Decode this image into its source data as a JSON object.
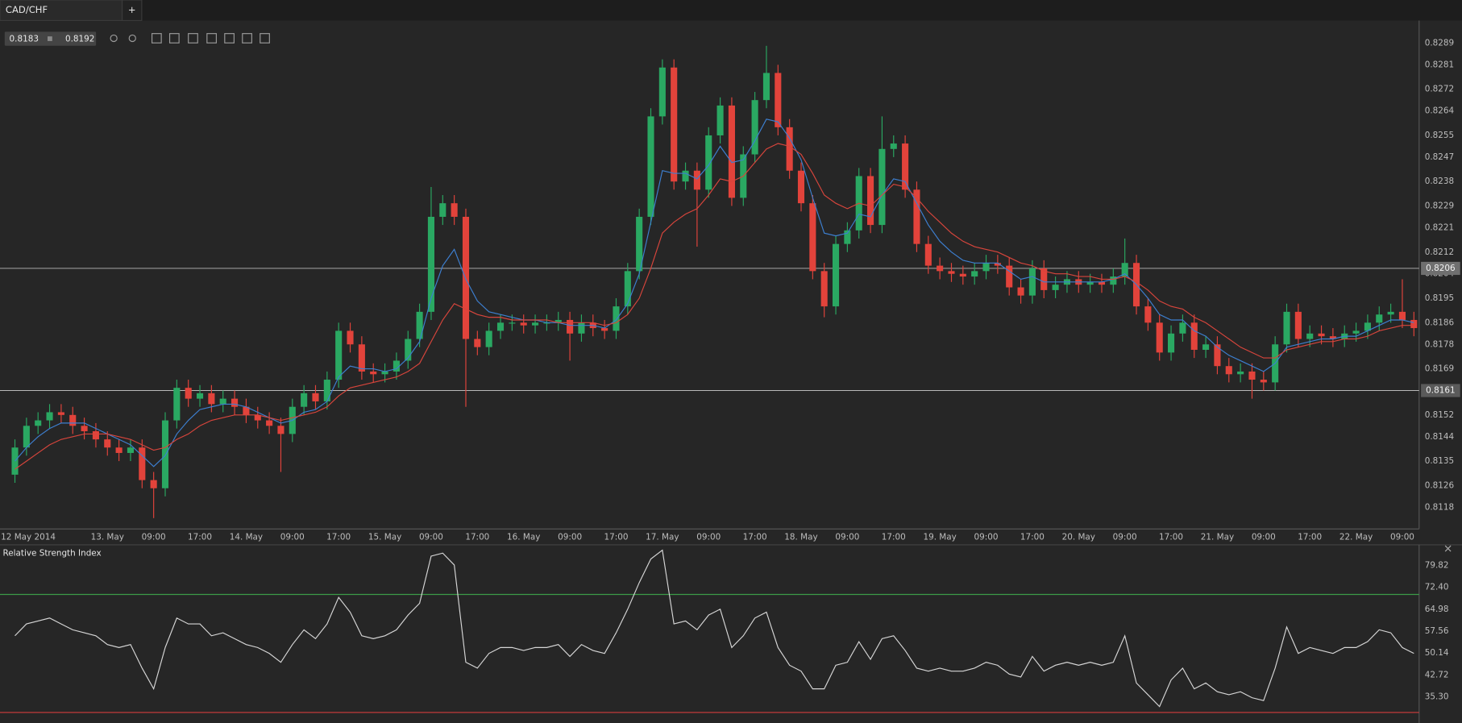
{
  "tabs": [
    "CAD/CHF",
    "+"
  ],
  "toolbar": {
    "bid": "0.8183",
    "ask": "0.8192"
  },
  "chart_data": [
    {
      "type": "candlestick",
      "up_color": "#2aa862",
      "down_color": "#e2433b",
      "ylim": [
        0.811,
        0.8298
      ],
      "yticks": [
        0.8289,
        0.8281,
        0.8272,
        0.8264,
        0.8255,
        0.8247,
        0.8238,
        0.8229,
        0.8221,
        0.8212,
        0.8204,
        0.8195,
        0.8186,
        0.8178,
        0.8169,
        0.8152,
        0.8144,
        0.8135,
        0.8126,
        0.8118
      ],
      "price_lines": [
        0.8206,
        0.8161
      ],
      "categories": [
        "12 May 2014",
        null,
        null,
        null,
        null,
        null,
        null,
        null,
        "13. May",
        null,
        null,
        null,
        "09:00",
        null,
        null,
        null,
        "17:00",
        null,
        null,
        null,
        "14. May",
        null,
        null,
        null,
        "09:00",
        null,
        null,
        null,
        "17:00",
        null,
        null,
        null,
        "15. May",
        null,
        null,
        null,
        "09:00",
        null,
        null,
        null,
        "17:00",
        null,
        null,
        null,
        "16. May",
        null,
        null,
        null,
        "09:00",
        null,
        null,
        null,
        "17:00",
        null,
        null,
        null,
        "17. May",
        null,
        null,
        null,
        "09:00",
        null,
        null,
        null,
        "17:00",
        null,
        null,
        null,
        "18. May",
        null,
        null,
        null,
        "09:00",
        null,
        null,
        null,
        "17:00",
        null,
        null,
        null,
        "19. May",
        null,
        null,
        null,
        "09:00",
        null,
        null,
        null,
        "17:00",
        null,
        null,
        null,
        "20. May",
        null,
        null,
        null,
        "09:00",
        null,
        null,
        null,
        "17:00",
        null,
        null,
        null,
        "21. May",
        null,
        null,
        null,
        "09:00",
        null,
        null,
        null,
        "17:00",
        null,
        null,
        null,
        "22. May",
        null,
        null,
        null,
        "09:00",
        null
      ],
      "open": [
        0.813,
        0.814,
        0.8148,
        0.815,
        0.8153,
        0.8152,
        0.8148,
        0.8146,
        0.8143,
        0.814,
        0.8138,
        0.814,
        0.8128,
        0.8125,
        0.815,
        0.8162,
        0.8158,
        0.816,
        0.8156,
        0.8158,
        0.8155,
        0.8152,
        0.815,
        0.8148,
        0.8145,
        0.8155,
        0.816,
        0.8157,
        0.8165,
        0.8183,
        0.8178,
        0.8168,
        0.8167,
        0.8168,
        0.8172,
        0.818,
        0.819,
        0.8225,
        0.823,
        0.8225,
        0.818,
        0.8177,
        0.8183,
        0.8186,
        0.8186,
        0.8185,
        0.8186,
        0.8186,
        0.8187,
        0.8182,
        0.8186,
        0.8184,
        0.8183,
        0.8192,
        0.8205,
        0.8225,
        0.8262,
        0.828,
        0.8238,
        0.8242,
        0.8235,
        0.8255,
        0.8266,
        0.8232,
        0.8248,
        0.8268,
        0.8278,
        0.8258,
        0.8242,
        0.823,
        0.8205,
        0.8192,
        0.8215,
        0.822,
        0.824,
        0.8222,
        0.825,
        0.8252,
        0.8235,
        0.8215,
        0.8207,
        0.8205,
        0.8204,
        0.8203,
        0.8205,
        0.8208,
        0.8207,
        0.8199,
        0.8196,
        0.8206,
        0.8198,
        0.82,
        0.8202,
        0.82,
        0.8201,
        0.82,
        0.8203,
        0.8208,
        0.8192,
        0.8186,
        0.8175,
        0.8182,
        0.8186,
        0.8176,
        0.8178,
        0.817,
        0.8167,
        0.8168,
        0.8165,
        0.8164,
        0.8178,
        0.819,
        0.818,
        0.8182,
        0.8181,
        0.818,
        0.8182,
        0.8183,
        0.8186,
        0.8189,
        0.819,
        0.8187
      ],
      "high": [
        0.8143,
        0.8151,
        0.8153,
        0.8156,
        0.8156,
        0.8155,
        0.8151,
        0.8149,
        0.8146,
        0.8143,
        0.8143,
        0.8143,
        0.8131,
        0.8153,
        0.8165,
        0.8165,
        0.8163,
        0.8163,
        0.8161,
        0.8161,
        0.8158,
        0.8155,
        0.8153,
        0.8151,
        0.8158,
        0.8163,
        0.8163,
        0.8168,
        0.8186,
        0.8186,
        0.8181,
        0.8171,
        0.8171,
        0.8175,
        0.8183,
        0.8193,
        0.8236,
        0.8233,
        0.8233,
        0.8228,
        0.8183,
        0.8186,
        0.8189,
        0.8189,
        0.8189,
        0.8189,
        0.8189,
        0.819,
        0.819,
        0.8189,
        0.8189,
        0.8187,
        0.8195,
        0.8208,
        0.8228,
        0.8265,
        0.8283,
        0.8283,
        0.8245,
        0.8245,
        0.8258,
        0.8269,
        0.8269,
        0.8251,
        0.8271,
        0.8288,
        0.8281,
        0.8261,
        0.8245,
        0.8233,
        0.8208,
        0.8218,
        0.8223,
        0.8243,
        0.8243,
        0.8262,
        0.8255,
        0.8255,
        0.8238,
        0.8218,
        0.821,
        0.8208,
        0.8207,
        0.8208,
        0.8211,
        0.8211,
        0.821,
        0.8202,
        0.8209,
        0.8209,
        0.8203,
        0.8205,
        0.8205,
        0.8204,
        0.8204,
        0.8206,
        0.8217,
        0.8211,
        0.8195,
        0.8189,
        0.8185,
        0.8189,
        0.8189,
        0.8181,
        0.8181,
        0.8173,
        0.8171,
        0.8171,
        0.8168,
        0.8181,
        0.8193,
        0.8193,
        0.8185,
        0.8185,
        0.8184,
        0.8185,
        0.8186,
        0.8189,
        0.8192,
        0.8193,
        0.8202,
        0.819
      ],
      "low": [
        0.8127,
        0.8137,
        0.8145,
        0.8147,
        0.8149,
        0.8145,
        0.8143,
        0.814,
        0.8137,
        0.8135,
        0.8135,
        0.8125,
        0.8114,
        0.8122,
        0.8147,
        0.8155,
        0.8155,
        0.8153,
        0.8153,
        0.8152,
        0.8149,
        0.8147,
        0.8145,
        0.8131,
        0.8142,
        0.8152,
        0.8154,
        0.8154,
        0.8162,
        0.8175,
        0.8165,
        0.8164,
        0.8164,
        0.8165,
        0.8169,
        0.8177,
        0.8187,
        0.8222,
        0.8222,
        0.8155,
        0.8174,
        0.8174,
        0.818,
        0.8183,
        0.8182,
        0.8182,
        0.8183,
        0.8183,
        0.8172,
        0.8179,
        0.8181,
        0.818,
        0.818,
        0.8189,
        0.8202,
        0.8222,
        0.8259,
        0.8235,
        0.8235,
        0.8214,
        0.8232,
        0.8252,
        0.8229,
        0.8229,
        0.8245,
        0.8265,
        0.8255,
        0.8239,
        0.8227,
        0.8202,
        0.8188,
        0.8189,
        0.8212,
        0.8217,
        0.8219,
        0.8219,
        0.8247,
        0.8232,
        0.8212,
        0.8204,
        0.8202,
        0.8201,
        0.82,
        0.82,
        0.8202,
        0.8204,
        0.8196,
        0.8193,
        0.8193,
        0.8195,
        0.8195,
        0.8197,
        0.8197,
        0.8197,
        0.8197,
        0.8197,
        0.82,
        0.8189,
        0.8183,
        0.8172,
        0.8172,
        0.8179,
        0.8173,
        0.8173,
        0.8167,
        0.8164,
        0.8164,
        0.8158,
        0.8161,
        0.8161,
        0.8175,
        0.8177,
        0.8177,
        0.8178,
        0.8177,
        0.8177,
        0.8179,
        0.818,
        0.8183,
        0.8186,
        0.8184,
        0.8181
      ],
      "close": [
        0.814,
        0.8148,
        0.815,
        0.8153,
        0.8152,
        0.8148,
        0.8146,
        0.8143,
        0.814,
        0.8138,
        0.814,
        0.8128,
        0.8125,
        0.815,
        0.8162,
        0.8158,
        0.816,
        0.8156,
        0.8158,
        0.8155,
        0.8152,
        0.815,
        0.8148,
        0.8145,
        0.8155,
        0.816,
        0.8157,
        0.8165,
        0.8183,
        0.8178,
        0.8168,
        0.8167,
        0.8168,
        0.8172,
        0.818,
        0.819,
        0.8225,
        0.823,
        0.8225,
        0.818,
        0.8177,
        0.8183,
        0.8186,
        0.8186,
        0.8185,
        0.8186,
        0.8186,
        0.8187,
        0.8182,
        0.8186,
        0.8184,
        0.8183,
        0.8192,
        0.8205,
        0.8225,
        0.8262,
        0.828,
        0.8238,
        0.8242,
        0.8235,
        0.8255,
        0.8266,
        0.8232,
        0.8248,
        0.8268,
        0.8278,
        0.8258,
        0.8242,
        0.823,
        0.8205,
        0.8192,
        0.8215,
        0.822,
        0.824,
        0.8222,
        0.825,
        0.8252,
        0.8235,
        0.8215,
        0.8207,
        0.8205,
        0.8204,
        0.8203,
        0.8205,
        0.8208,
        0.8207,
        0.8199,
        0.8196,
        0.8206,
        0.8198,
        0.82,
        0.8202,
        0.82,
        0.8201,
        0.82,
        0.8203,
        0.8208,
        0.8192,
        0.8186,
        0.8175,
        0.8182,
        0.8186,
        0.8176,
        0.8178,
        0.817,
        0.8167,
        0.8168,
        0.8165,
        0.8164,
        0.8178,
        0.819,
        0.818,
        0.8182,
        0.8181,
        0.818,
        0.8182,
        0.8183,
        0.8186,
        0.8189,
        0.819,
        0.8187,
        0.8184
      ],
      "series": [
        {
          "color": "#3d7fd0",
          "values": [
            0.8135,
            0.814,
            0.8144,
            0.8147,
            0.8149,
            0.8149,
            0.8149,
            0.8147,
            0.8145,
            0.8143,
            0.8141,
            0.8137,
            0.8133,
            0.8137,
            0.8145,
            0.815,
            0.8154,
            0.8155,
            0.8156,
            0.8156,
            0.8155,
            0.8153,
            0.8151,
            0.8149,
            0.815,
            0.8153,
            0.8154,
            0.8157,
            0.8166,
            0.817,
            0.8169,
            0.8169,
            0.8168,
            0.8169,
            0.8173,
            0.8179,
            0.8195,
            0.8207,
            0.8213,
            0.8202,
            0.8194,
            0.819,
            0.8189,
            0.8188,
            0.8187,
            0.8187,
            0.8186,
            0.8186,
            0.8185,
            0.8185,
            0.8185,
            0.8184,
            0.8187,
            0.8193,
            0.8204,
            0.8223,
            0.8242,
            0.8241,
            0.8241,
            0.8239,
            0.8244,
            0.8251,
            0.8245,
            0.8246,
            0.8253,
            0.8261,
            0.826,
            0.8254,
            0.8246,
            0.8232,
            0.8219,
            0.8218,
            0.8219,
            0.8226,
            0.8225,
            0.8233,
            0.8239,
            0.8238,
            0.823,
            0.8222,
            0.8216,
            0.8212,
            0.8209,
            0.8208,
            0.8208,
            0.8208,
            0.8205,
            0.8202,
            0.8203,
            0.8201,
            0.8201,
            0.8201,
            0.8201,
            0.8201,
            0.8201,
            0.8202,
            0.8204,
            0.82,
            0.8195,
            0.8189,
            0.8187,
            0.8187,
            0.8183,
            0.8181,
            0.8177,
            0.8174,
            0.8172,
            0.817,
            0.8168,
            0.8171,
            0.8177,
            0.8178,
            0.8179,
            0.818,
            0.818,
            0.8181,
            0.8181,
            0.8183,
            0.8185,
            0.8187,
            0.8187,
            0.8186
          ]
        },
        {
          "color": "#d8453c",
          "values": [
            0.8132,
            0.8135,
            0.8138,
            0.8141,
            0.8143,
            0.8144,
            0.8145,
            0.8145,
            0.8145,
            0.8144,
            0.8143,
            0.8141,
            0.8139,
            0.814,
            0.8143,
            0.8145,
            0.8148,
            0.815,
            0.8151,
            0.8152,
            0.8152,
            0.8152,
            0.8151,
            0.815,
            0.8151,
            0.8152,
            0.8153,
            0.8155,
            0.8159,
            0.8162,
            0.8163,
            0.8164,
            0.8165,
            0.8166,
            0.8168,
            0.8171,
            0.8179,
            0.8187,
            0.8193,
            0.8191,
            0.8189,
            0.8188,
            0.8188,
            0.8187,
            0.8187,
            0.8187,
            0.8187,
            0.8186,
            0.8186,
            0.8186,
            0.8186,
            0.8185,
            0.8186,
            0.8189,
            0.8195,
            0.8206,
            0.8219,
            0.8223,
            0.8226,
            0.8228,
            0.8233,
            0.8239,
            0.8238,
            0.824,
            0.8245,
            0.825,
            0.8252,
            0.8251,
            0.8248,
            0.8241,
            0.8233,
            0.823,
            0.8228,
            0.823,
            0.8229,
            0.8233,
            0.8237,
            0.8236,
            0.8232,
            0.8227,
            0.8223,
            0.8219,
            0.8216,
            0.8214,
            0.8213,
            0.8212,
            0.821,
            0.8208,
            0.8207,
            0.8205,
            0.8204,
            0.8204,
            0.8203,
            0.8203,
            0.8202,
            0.8202,
            0.8203,
            0.8201,
            0.8198,
            0.8194,
            0.8192,
            0.8191,
            0.8188,
            0.8186,
            0.8183,
            0.818,
            0.8177,
            0.8175,
            0.8173,
            0.8173,
            0.8176,
            0.8177,
            0.8178,
            0.8179,
            0.8179,
            0.818,
            0.818,
            0.8181,
            0.8183,
            0.8184,
            0.8185,
            0.8185
          ]
        }
      ]
    },
    {
      "type": "line",
      "title": "Relative Strength Index",
      "color": "#d6d6d6",
      "ylim": [
        28,
        86.5
      ],
      "yticks": [
        79.82,
        {
          "value": 72.4,
          "label": "72.40"
        },
        64.98,
        57.56,
        50.14,
        42.72,
        {
          "value": 35.3,
          "label": "35.30"
        }
      ],
      "levels": [
        {
          "value": 70,
          "color": "#3c9b48"
        },
        {
          "value": 30,
          "color": "#d23c3c"
        }
      ],
      "values": [
        56,
        60,
        61,
        62,
        60,
        58,
        57,
        56,
        53,
        52,
        53,
        45,
        38,
        52,
        62,
        60,
        60,
        56,
        57,
        55,
        53,
        52,
        50,
        47,
        53,
        58,
        55,
        60,
        69,
        64,
        56,
        55,
        56,
        58,
        63,
        67,
        83,
        84,
        80,
        47,
        45,
        50,
        52,
        52,
        51,
        52,
        52,
        53,
        49,
        53,
        51,
        50,
        57,
        65,
        74,
        82,
        85,
        60,
        61,
        58,
        63,
        65,
        52,
        56,
        62,
        64,
        52,
        46,
        44,
        38,
        38,
        46,
        47,
        54,
        48,
        55,
        56,
        51,
        45,
        44,
        45,
        44,
        44,
        45,
        47,
        46,
        43,
        42,
        49,
        44,
        46,
        47,
        46,
        47,
        46,
        47,
        56,
        40,
        36,
        32,
        41,
        45,
        38,
        40,
        37,
        36,
        37,
        35,
        34,
        45,
        59,
        50,
        52,
        51,
        50,
        52,
        52,
        54,
        58,
        57,
        52,
        50
      ]
    }
  ]
}
